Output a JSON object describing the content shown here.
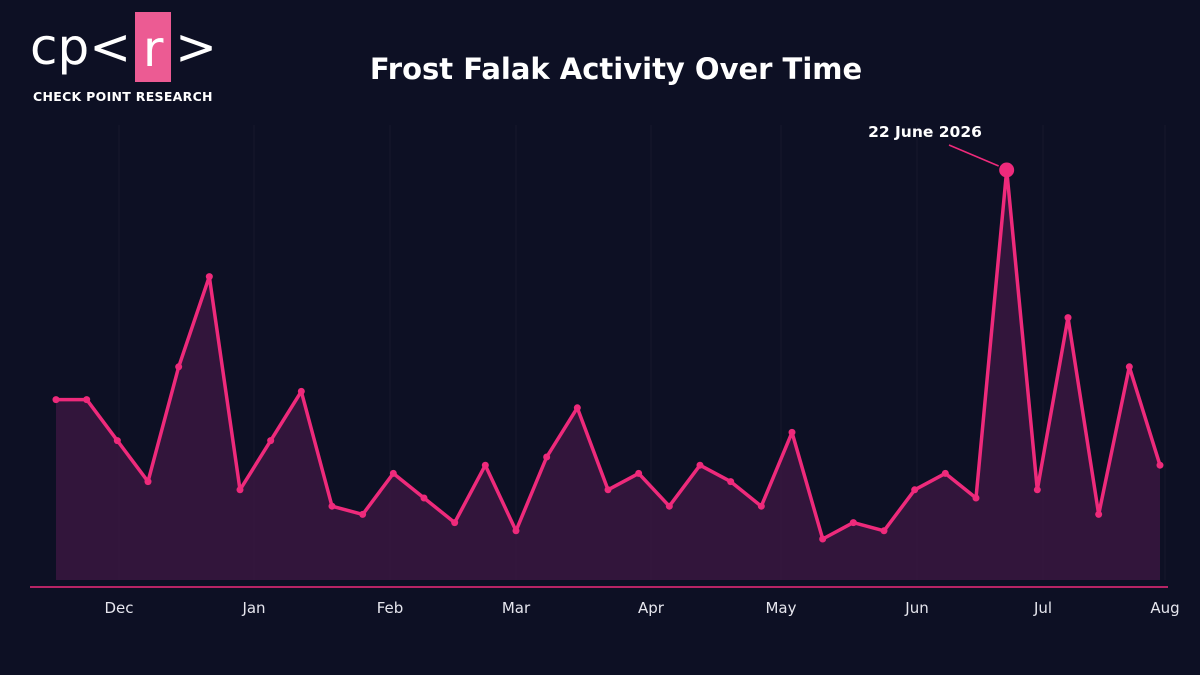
{
  "logo": {
    "left_glyphs": "cp<",
    "box_glyph": "r",
    "right_glyph": ">",
    "caption": "CHECK POINT RESEARCH"
  },
  "colors": {
    "background": "#0d1024",
    "accent": "#ee2a7b",
    "fill": "#3a1640",
    "grid": "#1e2236",
    "logo_box": "#ec5b93"
  },
  "chart_data": {
    "type": "area",
    "title": "Frost Falak Activity Over Time",
    "xlabel": "",
    "ylabel": "",
    "grid": true,
    "x_tick_labels": [
      "Dec",
      "Jan",
      "Feb",
      "Mar",
      "Apr",
      "May",
      "Jun",
      "Jul",
      "Aug"
    ],
    "ylim": [
      0,
      100
    ],
    "series": [
      {
        "values": [
          44,
          44,
          34,
          24,
          52,
          74,
          22,
          34,
          46,
          18,
          16,
          26,
          20,
          14,
          28,
          12,
          30,
          42,
          22,
          26,
          18,
          28,
          24,
          18,
          36,
          10,
          14,
          12,
          22,
          26,
          20,
          100,
          22,
          64,
          16,
          52,
          28
        ]
      }
    ],
    "annotation": {
      "text": "22 June 2026",
      "index": 31
    }
  }
}
